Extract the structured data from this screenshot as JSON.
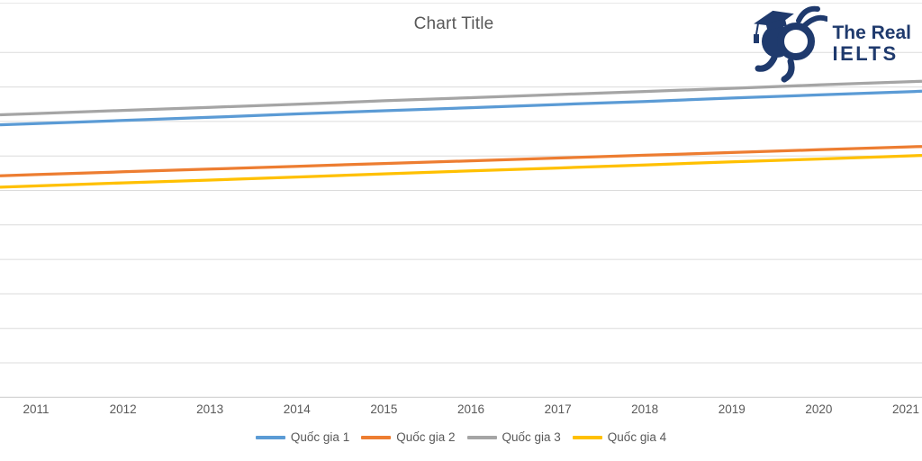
{
  "title": "Chart Title",
  "logo": {
    "line1": "The Real",
    "line2": "IELTS",
    "color": "#1F3A6D",
    "icon": "graduate-rabbit-mascot-icon"
  },
  "colors": {
    "gridline": "#DCDCDC",
    "axis_line": "#C9C9C9",
    "text": "#595959",
    "background": "#FFFFFF"
  },
  "chart_data": {
    "type": "line",
    "title": "Chart Title",
    "categories": [
      "2011",
      "2012",
      "2013",
      "2014",
      "2015",
      "2016",
      "2017",
      "2018",
      "2019",
      "2020",
      "2021"
    ],
    "series": [
      {
        "name": "Quốc gia 1",
        "color": "#5B9BD5",
        "values": [
          79.4,
          80.3,
          81.2,
          82.2,
          83.1,
          84.0,
          84.9,
          85.8,
          86.8,
          87.7,
          88.6
        ]
      },
      {
        "name": "Quốc gia 2",
        "color": "#ED7D31",
        "values": [
          64.6,
          65.4,
          66.2,
          67.0,
          67.8,
          68.6,
          69.4,
          70.2,
          71.0,
          71.8,
          72.6
        ]
      },
      {
        "name": "Quốc gia 3",
        "color": "#A5A5A5",
        "values": [
          82.3,
          83.2,
          84.1,
          85.0,
          86.0,
          86.9,
          87.8,
          88.7,
          89.6,
          90.6,
          91.5
        ]
      },
      {
        "name": "Quốc gia 4",
        "color": "#FFC000",
        "values": [
          61.3,
          62.2,
          63.0,
          63.9,
          64.8,
          65.7,
          66.5,
          67.4,
          68.3,
          69.1,
          70.0
        ]
      }
    ],
    "xlabel": "",
    "ylabel": "",
    "ylim": [
      0,
      100
    ],
    "y_grid_step": 10,
    "grid": true,
    "y_axis_tick_labels_visible": false,
    "lines_extend_to_plot_edges": true,
    "legend_position": "bottom"
  }
}
